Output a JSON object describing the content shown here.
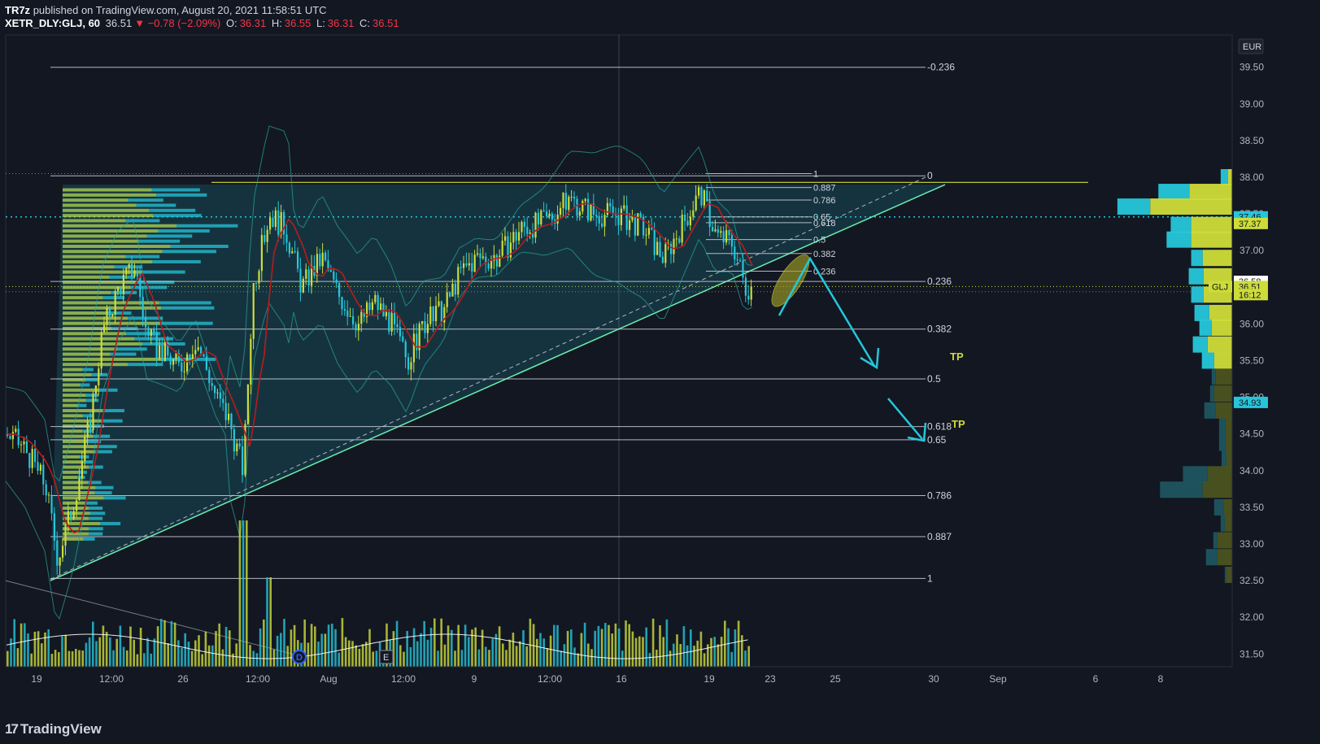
{
  "header": {
    "published_by": "TR7z",
    "published_text": "published on TradingView.com, August 20, 2021 11:58:51 UTC",
    "symbol": "XETR_DLY:GLJ, 60",
    "last": "36.51",
    "change": "▼ −0.78 (−2.09%)",
    "o_label": "O:",
    "o_value": "36.31",
    "h_label": "H:",
    "h_value": "36.55",
    "l_label": "L:",
    "l_value": "36.31",
    "c_label": "C:",
    "c_value": "36.51"
  },
  "logo": {
    "mark": "17",
    "text": "TradingView"
  },
  "colors": {
    "background": "#131722",
    "bull": "#cddc39",
    "bear": "#26c6da",
    "ma_red": "#b71c1c",
    "fib_white": "#d1d4dc",
    "trend_green": "#69f0ae",
    "arrow_cyan": "#26c6da"
  },
  "chart_data": {
    "type": "candlestick",
    "currency_label": "EUR",
    "y_range": [
      31.3,
      40.0
    ],
    "y_ticks": [
      "39.50",
      "39.00",
      "38.50",
      "38.00",
      "37.50",
      "37.00",
      "36.50",
      "36.00",
      "35.50",
      "35.00",
      "34.50",
      "34.00",
      "33.50",
      "33.00",
      "32.50",
      "32.00",
      "31.50"
    ],
    "x_ticks": [
      "19",
      "12:00",
      "26",
      "12:00",
      "Aug",
      "12:00",
      "9",
      "12:00",
      "16",
      "19",
      "23",
      "25",
      "30",
      "Sep",
      "6",
      "8"
    ],
    "price_labels": [
      {
        "label": "37.46",
        "kind": "dotted"
      },
      {
        "label": "37.37",
        "kind": "bull"
      },
      {
        "label": "36.58",
        "kind": "white"
      },
      {
        "label": "GLJ",
        "value": "36.51",
        "kind": "current"
      },
      {
        "label": "16:12",
        "kind": "countdown"
      },
      {
        "label": "34.93",
        "kind": "cyan"
      }
    ],
    "price_label_values": [
      37.46,
      37.37,
      36.58,
      36.51,
      36.4,
      34.93
    ],
    "fib_large": [
      {
        "label": "-0.236",
        "price": 39.5
      },
      {
        "label": "0",
        "price": 38.02
      },
      {
        "label": "0.236",
        "price": 36.58
      },
      {
        "label": "0.382",
        "price": 35.93
      },
      {
        "label": "0.5",
        "price": 35.25
      },
      {
        "label": "0.618",
        "price": 34.6
      },
      {
        "label": "0.65",
        "price": 34.42
      },
      {
        "label": "0.786",
        "price": 33.66
      },
      {
        "label": "0.887",
        "price": 33.1
      },
      {
        "label": "1",
        "price": 32.53
      }
    ],
    "fib_small": [
      {
        "label": "1",
        "price": 38.05
      },
      {
        "label": "0.887",
        "price": 37.86
      },
      {
        "label": "0.786",
        "price": 37.69
      },
      {
        "label": "0.65",
        "price": 37.46
      },
      {
        "label": "0.618",
        "price": 37.38
      },
      {
        "label": "0.5",
        "price": 37.15
      },
      {
        "label": "0.382",
        "price": 36.96
      },
      {
        "label": "0.236",
        "price": 36.72
      }
    ],
    "annotations": [
      {
        "text": "TP",
        "price": 35.56
      },
      {
        "text": "TP",
        "price": 34.64
      }
    ],
    "event_markers": [
      "D",
      "E"
    ],
    "volume_profile": [
      {
        "price": 38.0,
        "up": 0.05,
        "down": 0.09
      },
      {
        "price": 37.8,
        "up": 0.52,
        "down": 0.38
      },
      {
        "price": 37.6,
        "up": 1.0,
        "down": 0.4
      },
      {
        "price": 37.35,
        "up": 0.5,
        "down": 0.25
      },
      {
        "price": 37.15,
        "up": 0.5,
        "down": 0.3
      },
      {
        "price": 36.9,
        "up": 0.36,
        "down": 0.14
      },
      {
        "price": 36.65,
        "up": 0.35,
        "down": 0.18
      },
      {
        "price": 36.4,
        "up": 0.35,
        "down": 0.15
      },
      {
        "price": 36.15,
        "up": 0.28,
        "down": 0.18
      },
      {
        "price": 35.95,
        "up": 0.25,
        "down": 0.15
      },
      {
        "price": 35.72,
        "up": 0.3,
        "down": 0.18
      },
      {
        "price": 35.5,
        "up": 0.22,
        "down": 0.15
      },
      {
        "price": 35.28,
        "up": 0.2,
        "down": 0.05
      },
      {
        "price": 35.05,
        "up": 0.22,
        "down": 0.05
      },
      {
        "price": 34.82,
        "up": 0.2,
        "down": 0.14
      },
      {
        "price": 34.6,
        "up": 0.08,
        "down": 0.08
      },
      {
        "price": 34.38,
        "up": 0.08,
        "down": 0.08
      },
      {
        "price": 34.16,
        "up": 0.07,
        "down": 0.06
      },
      {
        "price": 33.95,
        "up": 0.3,
        "down": 0.3
      },
      {
        "price": 33.74,
        "up": 0.36,
        "down": 0.52
      },
      {
        "price": 33.5,
        "up": 0.1,
        "down": 0.12
      },
      {
        "price": 33.28,
        "up": 0.09,
        "down": 0.05
      },
      {
        "price": 33.05,
        "up": 0.18,
        "down": 0.05
      },
      {
        "price": 32.82,
        "up": 0.18,
        "down": 0.14
      },
      {
        "price": 32.58,
        "up": 0.07,
        "down": 0.02
      }
    ]
  }
}
